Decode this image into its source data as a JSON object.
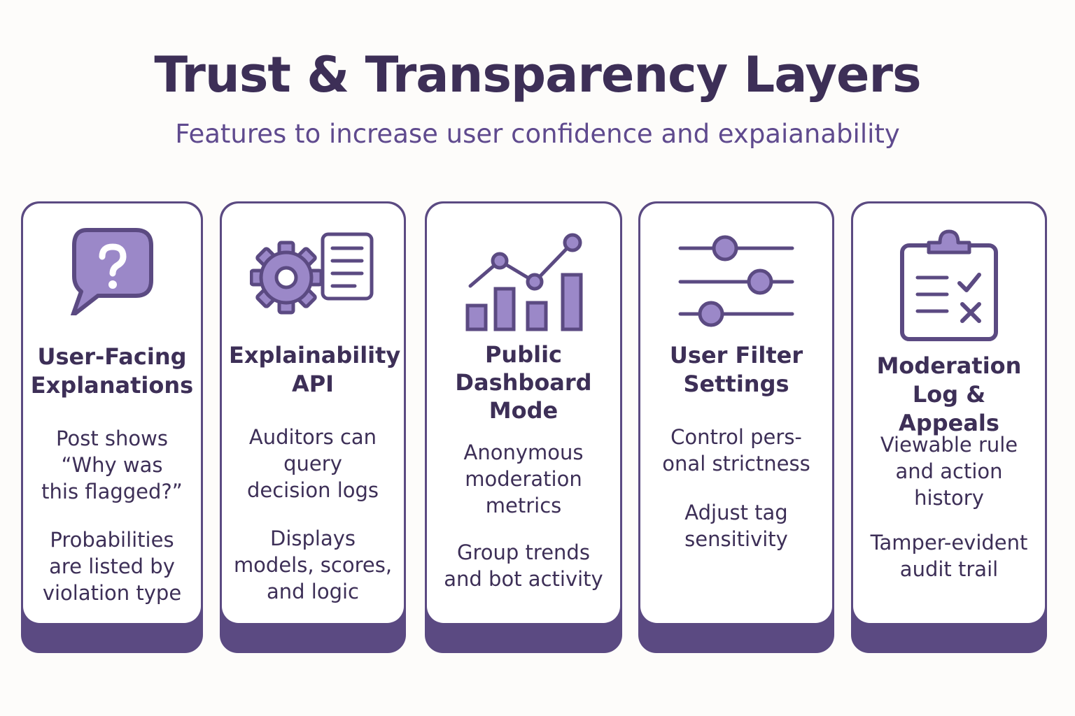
{
  "header": {
    "title": "Trust & Transparency Layers",
    "subtitle": "Features to increase user confidence and expaianability"
  },
  "colors": {
    "primary": "#5b4a82",
    "icon_fill": "#9b88c8",
    "title_text": "#3d2f57",
    "subtitle_text": "#5f4a8e",
    "background": "#fdfcfa"
  },
  "cards": [
    {
      "icon": "question-speech-bubble-icon",
      "title": "User-Facing\nExplanations",
      "points": [
        "Post shows\n“Why was\nthis flagged?”",
        "Probabilities\nare listed by\nviolation type"
      ]
    },
    {
      "icon": "gear-document-icon",
      "title": "Explainability\nAPI",
      "points": [
        "Auditors can\nquery\ndecision logs",
        "Displays\nmodels, scores,\nand logic"
      ]
    },
    {
      "icon": "bar-line-chart-icon",
      "title": "Public\nDashboard\nMode",
      "points": [
        "Anonymous\nmoderation\nmetrics",
        "Group trends\nand bot activity"
      ]
    },
    {
      "icon": "filter-sliders-icon",
      "title": "User Filter\nSettings",
      "points": [
        "Control pers-\nonal strictness",
        "Adjust tag\nsensitivity"
      ]
    },
    {
      "icon": "clipboard-checklist-icon",
      "title": "Moderation\nLog & Appeals",
      "points": [
        "Viewable rule\nand action\nhistory",
        "Tamper-evident\naudit trail"
      ]
    }
  ]
}
